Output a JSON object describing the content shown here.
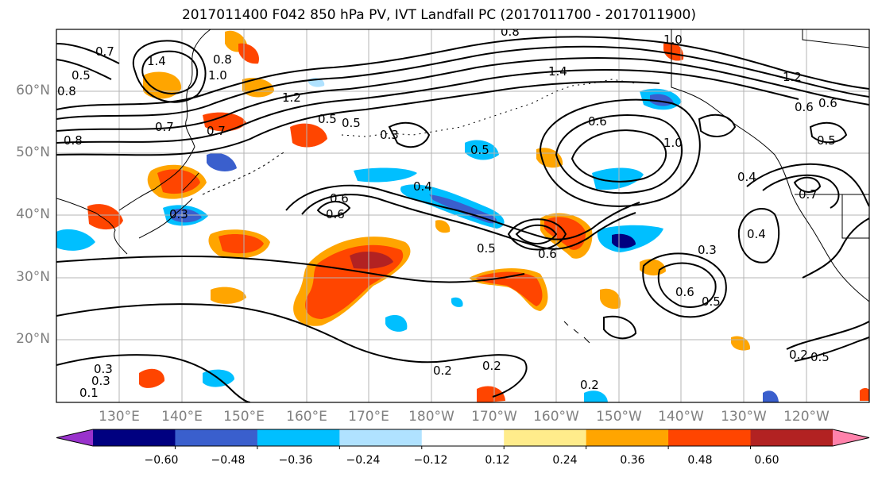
{
  "title": "2017011400 F042 850 hPa PV, IVT Landfall PC (2017011700 - 2017011900)",
  "map": {
    "lat_labels": [
      "60°N",
      "50°N",
      "40°N",
      "30°N",
      "20°N"
    ],
    "lon_labels": [
      "130°E",
      "140°E",
      "150°E",
      "160°E",
      "170°E",
      "180°W",
      "170°W",
      "160°W",
      "150°W",
      "140°W",
      "130°W",
      "120°W"
    ],
    "extent": {
      "lon_min": 120,
      "lon_max": 250,
      "lat_min": 10,
      "lat_max": 70
    },
    "contour_labels": [
      "0.7",
      "1.4",
      "1.0",
      "0.8",
      "0.8",
      "0.5",
      "1.2",
      "0.8",
      "0.7",
      "0.3",
      "0.5",
      "0.4",
      "0.6",
      "0.3",
      "0.6",
      "0.5",
      "0.6",
      "0.5",
      "0.2",
      "0.2",
      "0.2",
      "0.3",
      "0.3",
      "0.6",
      "0.5",
      "0.4",
      "0.6",
      "0.5",
      "0.3",
      "0.7",
      "0.2",
      "1.0",
      "1.2",
      "0.8",
      "0.6",
      "1.0",
      "0.4",
      "0.5",
      "1.4",
      "0.7",
      "0.6",
      "0.1",
      "0.5"
    ]
  },
  "colorbar": {
    "ticks": [
      "−0.60",
      "−0.48",
      "−0.36",
      "−0.24",
      "−0.12",
      "0.12",
      "0.24",
      "0.36",
      "0.48",
      "0.60"
    ],
    "colors": [
      "#9932cc",
      "#000080",
      "#3a5fcd",
      "#00bfff",
      "#b0e2ff",
      "#ffffff",
      "#ffec8b",
      "#ffa500",
      "#ff4500",
      "#b22222",
      "#ff82ab"
    ]
  }
}
